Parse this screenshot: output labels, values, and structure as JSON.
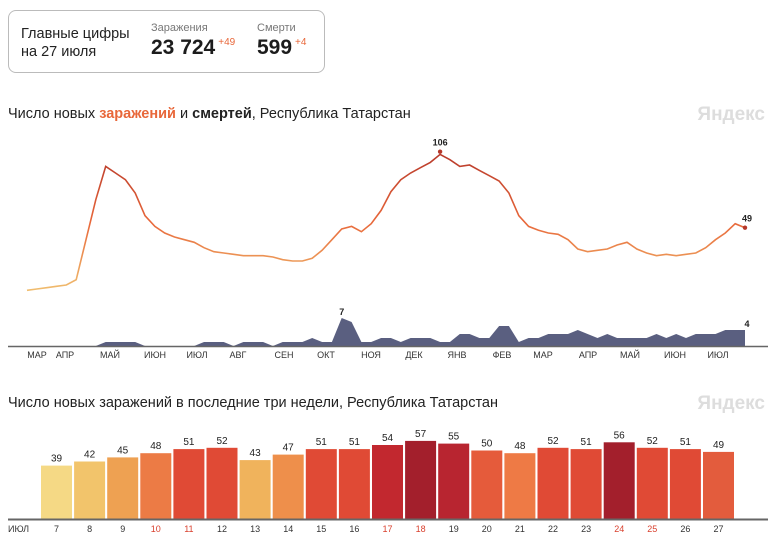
{
  "summary": {
    "heading_line1": "Главные цифры",
    "heading_line2": "на 27 июля",
    "infections_label": "Заражения",
    "infections_value": "23 724",
    "infections_delta": "+49",
    "deaths_label": "Смерти",
    "deaths_value": "599",
    "deaths_delta": "+4"
  },
  "brand": {
    "logo": "Яндекс"
  },
  "colors": {
    "infections": "#e8673a",
    "infections_dark": "#b5372a",
    "deaths": "#5a5f80",
    "axis": "#666"
  },
  "chart_data": [
    {
      "type": "area",
      "title_parts": [
        "Число новых ",
        "заражений",
        " и ",
        "смертей",
        ", Республика Татарстан"
      ],
      "x_tick_labels": [
        "МАР",
        "АПР",
        "МАЙ",
        "ИЮН",
        "ИЮЛ",
        "АВГ",
        "СЕН",
        "ОКТ",
        "НОЯ",
        "ДЕК",
        "ЯНВ",
        "ФЕВ",
        "МАР",
        "АПР",
        "МАЙ",
        "ИЮН",
        "ИЮЛ"
      ],
      "x_unit": "week (from 1 Mar 2020 to 27 Jul 2021)",
      "series": [
        {
          "name": "заражения",
          "type": "line",
          "values": [
            2,
            3,
            4,
            5,
            6,
            10,
            40,
            70,
            95,
            90,
            85,
            75,
            58,
            50,
            45,
            42,
            40,
            38,
            34,
            31,
            30,
            29,
            28,
            28,
            28,
            27,
            25,
            24,
            24,
            26,
            32,
            40,
            48,
            50,
            46,
            52,
            62,
            76,
            85,
            90,
            94,
            98,
            104,
            100,
            95,
            96,
            92,
            88,
            84,
            75,
            58,
            50,
            47,
            45,
            44,
            40,
            33,
            31,
            32,
            33,
            36,
            38,
            33,
            30,
            28,
            29,
            28,
            29,
            30,
            34,
            40,
            45,
            52,
            49
          ],
          "annotations": [
            {
              "label": "106",
              "value": 106,
              "index": 42
            },
            {
              "label": "49",
              "value": 49,
              "index": 73
            }
          ]
        },
        {
          "name": "смерти",
          "type": "area",
          "values": [
            0,
            0,
            0,
            0,
            0,
            0,
            0,
            0,
            1,
            1,
            1,
            1,
            0,
            0,
            0,
            0,
            0,
            0,
            1,
            1,
            1,
            0,
            1,
            1,
            1,
            0,
            1,
            1,
            1,
            2,
            1,
            1,
            7,
            6,
            1,
            1,
            2,
            2,
            1,
            2,
            2,
            2,
            1,
            1,
            3,
            3,
            2,
            2,
            5,
            5,
            1,
            2,
            2,
            3,
            3,
            3,
            4,
            3,
            2,
            3,
            2,
            2,
            2,
            2,
            3,
            2,
            3,
            2,
            3,
            3,
            3,
            4,
            4,
            4
          ],
          "annotations": [
            {
              "label": "7",
              "value": 7,
              "index": 32
            },
            {
              "label": "4",
              "value": 4,
              "index": 73
            }
          ]
        }
      ],
      "ylim_infections": [
        0,
        110
      ],
      "ylim_deaths": [
        0,
        8
      ]
    },
    {
      "type": "bar",
      "title": "Число новых заражений в последние три недели, Республика Татарстан",
      "month_label": "ИЮЛ",
      "categories": [
        "7",
        "8",
        "9",
        "10",
        "11",
        "12",
        "13",
        "14",
        "15",
        "16",
        "17",
        "18",
        "19",
        "20",
        "21",
        "22",
        "23",
        "24",
        "25",
        "26",
        "27"
      ],
      "values": [
        39,
        42,
        45,
        48,
        51,
        52,
        43,
        47,
        51,
        51,
        54,
        57,
        55,
        50,
        48,
        52,
        51,
        56,
        52,
        51,
        49
      ],
      "weekend": [
        false,
        false,
        false,
        true,
        true,
        false,
        false,
        false,
        false,
        false,
        true,
        true,
        false,
        false,
        false,
        false,
        false,
        true,
        true,
        false,
        false
      ],
      "bar_colors": [
        "#f5d985",
        "#f2c46b",
        "#eea152",
        "#ec7b45",
        "#e04a35",
        "#e04a35",
        "#f0b35c",
        "#ee8f4b",
        "#e04a35",
        "#e04a35",
        "#c2282f",
        "#a31f2c",
        "#b82530",
        "#e55b3b",
        "#ee7a45",
        "#e04a35",
        "#e04a35",
        "#a31f2c",
        "#e04a35",
        "#e04a35",
        "#e35c3d"
      ],
      "ylim": [
        0,
        60
      ]
    }
  ]
}
